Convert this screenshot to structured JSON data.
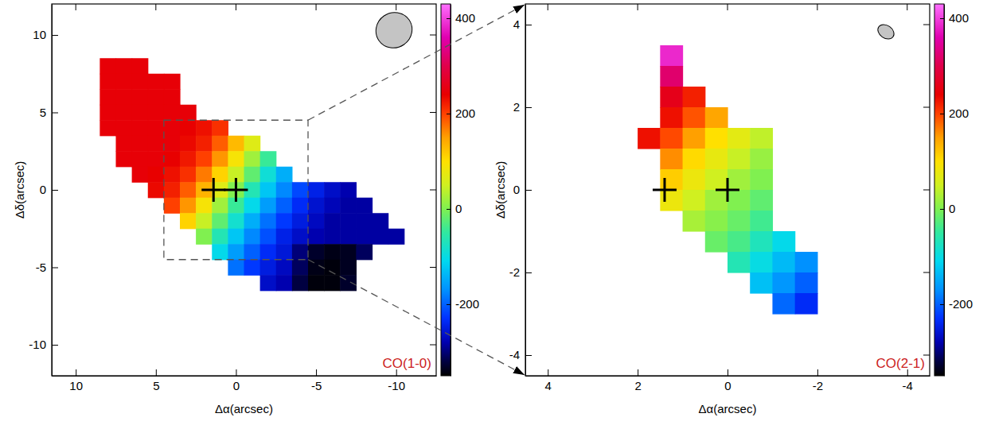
{
  "chart_data": [
    {
      "type": "heatmap",
      "annotation": "CO(1-0)",
      "x_label": "Δα(arcsec)",
      "y_label": "Δδ(arcsec)",
      "xlim": [
        11.5,
        -12.5
      ],
      "xticks": [
        10,
        5,
        0,
        -5,
        -10
      ],
      "ylim": [
        -12,
        12
      ],
      "yticks": [
        -10,
        -5,
        0,
        5,
        10
      ],
      "x": [
        8,
        7,
        6,
        5,
        4,
        3,
        2,
        1,
        0,
        -1,
        -2,
        -3,
        -4,
        -5,
        -6,
        -7,
        -8,
        -9,
        -10
      ],
      "y": [
        8,
        7,
        6,
        5,
        4,
        3,
        2,
        1,
        0,
        -1,
        -2,
        -3,
        -4,
        -5,
        -6
      ],
      "z": [
        [
          245,
          245,
          245,
          null,
          null,
          null,
          null,
          null,
          null,
          null,
          null,
          null,
          null,
          null,
          null,
          null,
          null,
          null,
          null
        ],
        [
          245,
          245,
          245,
          245,
          245,
          null,
          null,
          null,
          null,
          null,
          null,
          null,
          null,
          null,
          null,
          null,
          null,
          null,
          null
        ],
        [
          245,
          245,
          245,
          245,
          245,
          null,
          null,
          null,
          null,
          null,
          null,
          null,
          null,
          null,
          null,
          null,
          null,
          null,
          null
        ],
        [
          245,
          245,
          245,
          245,
          245,
          245,
          null,
          null,
          null,
          null,
          null,
          null,
          null,
          null,
          null,
          null,
          null,
          null,
          null
        ],
        [
          245,
          245,
          245,
          245,
          245,
          240,
          230,
          210,
          null,
          null,
          null,
          null,
          null,
          null,
          null,
          null,
          null,
          null,
          null
        ],
        [
          null,
          245,
          245,
          245,
          245,
          235,
          220,
          185,
          130,
          65,
          null,
          null,
          null,
          null,
          null,
          null,
          null,
          null,
          null
        ],
        [
          null,
          245,
          245,
          245,
          240,
          225,
          200,
          155,
          90,
          20,
          -45,
          null,
          null,
          null,
          null,
          null,
          null,
          null,
          null
        ],
        [
          null,
          null,
          245,
          240,
          230,
          210,
          170,
          110,
          45,
          -20,
          -90,
          -145,
          null,
          null,
          null,
          null,
          null,
          null,
          null
        ],
        [
          null,
          null,
          null,
          235,
          220,
          185,
          135,
          65,
          0,
          -65,
          -125,
          -175,
          -215,
          -245,
          -265,
          -280,
          null,
          null,
          null
        ],
        [
          null,
          null,
          null,
          null,
          200,
          155,
          90,
          20,
          -45,
          -105,
          -160,
          -200,
          -235,
          -260,
          -275,
          -285,
          -285,
          null,
          null
        ],
        [
          null,
          null,
          null,
          null,
          null,
          110,
          45,
          -20,
          -85,
          -145,
          -190,
          -225,
          -250,
          -270,
          -285,
          -285,
          -285,
          -285,
          null
        ],
        [
          null,
          null,
          null,
          null,
          null,
          null,
          0,
          -65,
          -125,
          -175,
          -210,
          -245,
          -265,
          -280,
          -285,
          -285,
          -285,
          -285,
          -285
        ],
        [
          null,
          null,
          null,
          null,
          null,
          null,
          null,
          -105,
          -160,
          -200,
          -235,
          -255,
          -300,
          -330,
          -340,
          -335,
          -310,
          null,
          null
        ],
        [
          null,
          null,
          null,
          null,
          null,
          null,
          null,
          null,
          -190,
          -225,
          -250,
          -270,
          -310,
          -340,
          -345,
          -335,
          null,
          null,
          null
        ],
        [
          null,
          null,
          null,
          null,
          null,
          null,
          null,
          null,
          null,
          null,
          -265,
          -280,
          -320,
          -345,
          -345,
          -330,
          null,
          null,
          null
        ]
      ],
      "colorbar": {
        "range": [
          -350,
          430
        ],
        "ticks": [
          -200,
          0,
          200,
          400
        ]
      },
      "crosses": {
        "x": [
          1.4,
          0
        ],
        "y": [
          0,
          0
        ]
      }
    },
    {
      "type": "heatmap",
      "annotation": "CO(2-1)",
      "x_label": "Δα(arcsec)",
      "y_label": "Δδ(arcsec)",
      "xlim": [
        4.5,
        -4.5
      ],
      "xticks": [
        4,
        2,
        0,
        -2,
        -4
      ],
      "ylim": [
        -4.5,
        4.5
      ],
      "yticks": [
        -4,
        -2,
        0,
        2,
        4
      ],
      "x": [
        1.75,
        1.25,
        0.75,
        0.25,
        -0.25,
        -0.75,
        -1.25,
        -1.75
      ],
      "y": [
        3.25,
        2.75,
        2.25,
        1.75,
        1.25,
        0.75,
        0.25,
        -0.25,
        -0.75,
        -1.25,
        -1.75,
        -2.25,
        -2.75
      ],
      "z": [
        [
          null,
          385,
          null,
          null,
          null,
          null,
          null,
          null
        ],
        [
          null,
          320,
          null,
          null,
          null,
          null,
          null,
          null
        ],
        [
          null,
          260,
          220,
          null,
          null,
          null,
          null,
          null
        ],
        [
          null,
          230,
          190,
          145,
          null,
          null,
          null,
          null
        ],
        [
          230,
          195,
          150,
          100,
          70,
          40,
          null,
          null
        ],
        [
          null,
          160,
          105,
          75,
          45,
          15,
          null,
          null
        ],
        [
          null,
          115,
          80,
          50,
          20,
          0,
          null,
          null
        ],
        [
          null,
          80,
          50,
          20,
          0,
          -20,
          null,
          null
        ],
        [
          null,
          null,
          25,
          5,
          -15,
          -40,
          null,
          null
        ],
        [
          null,
          null,
          null,
          -15,
          -35,
          -70,
          -105,
          null
        ],
        [
          null,
          null,
          null,
          null,
          -65,
          -100,
          -135,
          -170
        ],
        [
          null,
          null,
          null,
          null,
          null,
          -130,
          -165,
          -200
        ],
        [
          null,
          null,
          null,
          null,
          null,
          null,
          -195,
          -235
        ]
      ],
      "colorbar": {
        "range": [
          -350,
          430
        ],
        "ticks": [
          -200,
          0,
          200,
          400
        ]
      },
      "crosses": {
        "x": [
          1.4,
          0
        ],
        "y": [
          0,
          0
        ]
      }
    }
  ]
}
